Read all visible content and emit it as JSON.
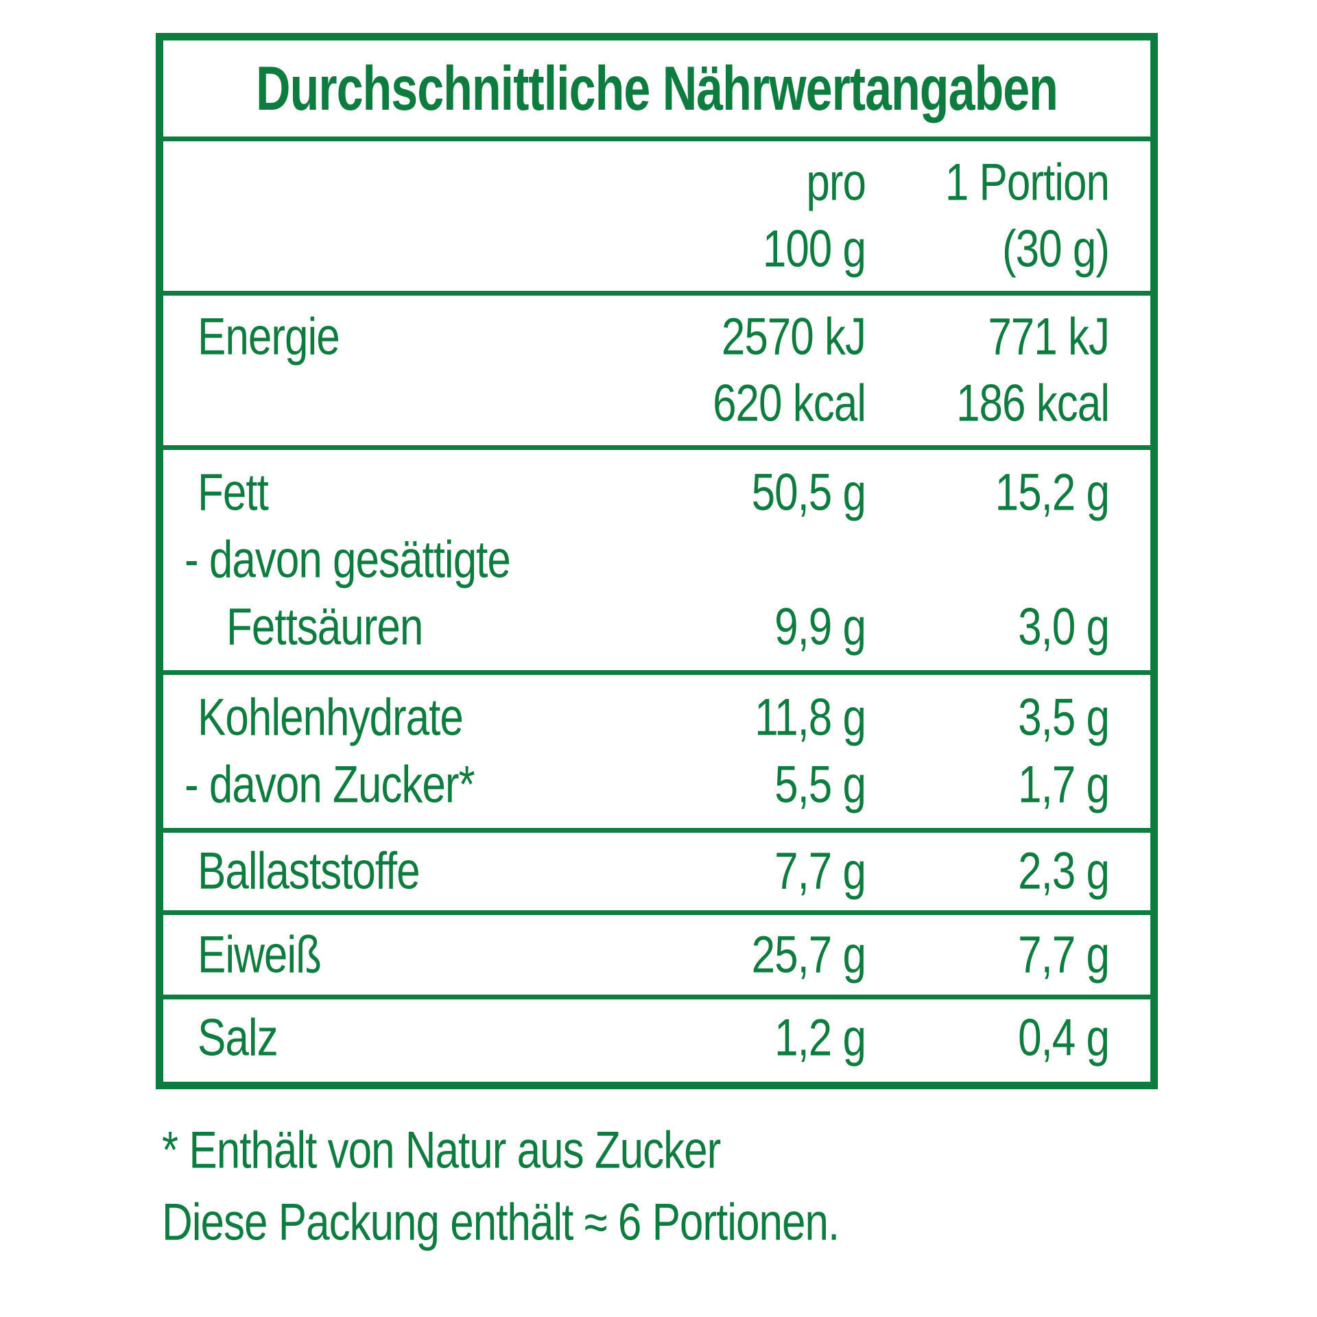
{
  "accent_color": "#0E7C3F",
  "background_color": "#FFFFFF",
  "table": {
    "title": "Durchschnittliche Nährwertangaben",
    "header": {
      "col1_line1": "pro",
      "col1_line2": "100 g",
      "col2_line1": "1 Portion",
      "col2_line2": "(30 g)"
    },
    "lines": [
      {
        "label": "Energie",
        "per100": "2570 kJ",
        "portion": "771 kJ"
      },
      {
        "label": "",
        "per100": "620 kcal",
        "portion": "186 kcal"
      },
      {
        "label": "Fett",
        "per100": "50,5 g",
        "portion": "15,2 g"
      },
      {
        "label": "- davon gesättigte",
        "per100": "",
        "portion": ""
      },
      {
        "label": "Fettsäuren",
        "per100": "9,9 g",
        "portion": "3,0 g"
      },
      {
        "label": "Kohlenhydrate",
        "per100": "11,8 g",
        "portion": "3,5 g"
      },
      {
        "label": "- davon Zucker*",
        "per100": "5,5 g",
        "portion": "1,7 g"
      },
      {
        "label": "Ballaststoffe",
        "per100": "7,7 g",
        "portion": "2,3 g"
      },
      {
        "label": "Eiweiß",
        "per100": "25,7 g",
        "portion": "7,7 g"
      },
      {
        "label": "Salz",
        "per100": "1,2 g",
        "portion": "0,4 g"
      }
    ]
  },
  "footnotes": {
    "natural_sugar": "* Enthält von Natur aus Zucker",
    "portions": "Diese Packung enthält ≈ 6 Portionen."
  }
}
